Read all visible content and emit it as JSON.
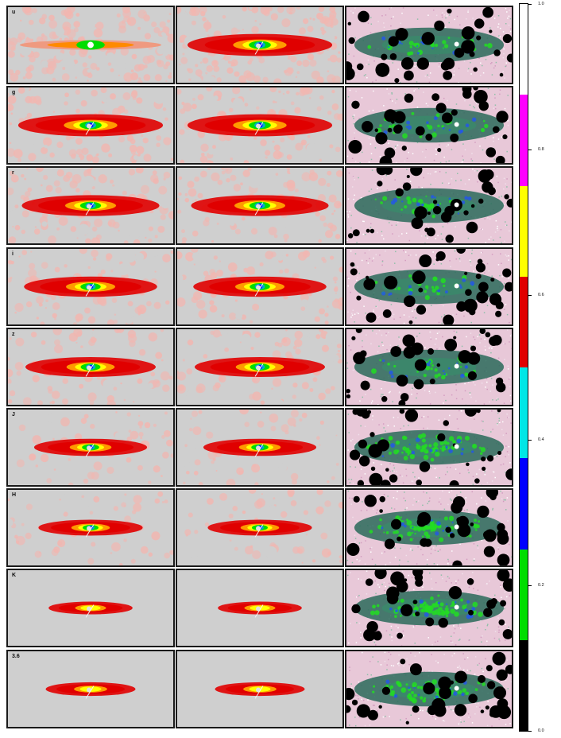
{
  "figure": {
    "bands": [
      "u",
      "g",
      "r",
      "i",
      "z",
      "J",
      "H",
      "K",
      "3.6"
    ],
    "column_kinds": [
      "data",
      "model",
      "residual"
    ],
    "colorbar": {
      "ticks": [
        "1.0",
        "0.8",
        "0.6",
        "0.4",
        "0.2",
        "0.0"
      ],
      "segments": [
        {
          "from": 0.0,
          "to": 0.125,
          "color": "#000000"
        },
        {
          "from": 0.125,
          "to": 0.25,
          "color": "#00dd00"
        },
        {
          "from": 0.25,
          "to": 0.375,
          "color": "#0000ff"
        },
        {
          "from": 0.375,
          "to": 0.5,
          "color": "#00e6e6"
        },
        {
          "from": 0.5,
          "to": 0.625,
          "color": "#e00000"
        },
        {
          "from": 0.625,
          "to": 0.75,
          "color": "#ffff00"
        },
        {
          "from": 0.75,
          "to": 0.875,
          "color": "#ff00ff"
        },
        {
          "from": 0.875,
          "to": 1.0,
          "color": "#ffffff"
        }
      ]
    },
    "colors": {
      "background": "#cfcfcf",
      "halo": "#f2b6b0",
      "disk_outer": "#e00000",
      "disk_inner": "#ffff00",
      "core": "#00dd00",
      "nucleus": "#0000ff",
      "residual_bg": "#e8c8d8",
      "residual_disk": "#2a6a5a",
      "mask": "#000000"
    }
  }
}
